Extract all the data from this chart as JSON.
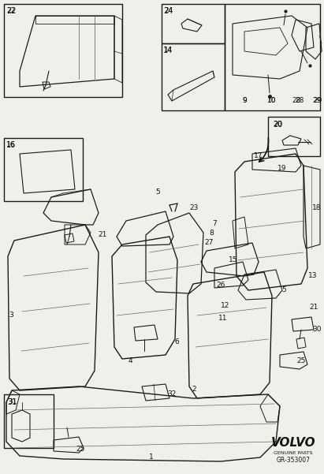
{
  "bg_color": "#f0f0eb",
  "line_color": "#1a1a1a",
  "fig_width": 4.11,
  "fig_height": 6.01,
  "dpi": 100,
  "volvo_text": "VOLVO",
  "genuine_parts": "GENUINE PARTS",
  "part_number": "GR-353007"
}
